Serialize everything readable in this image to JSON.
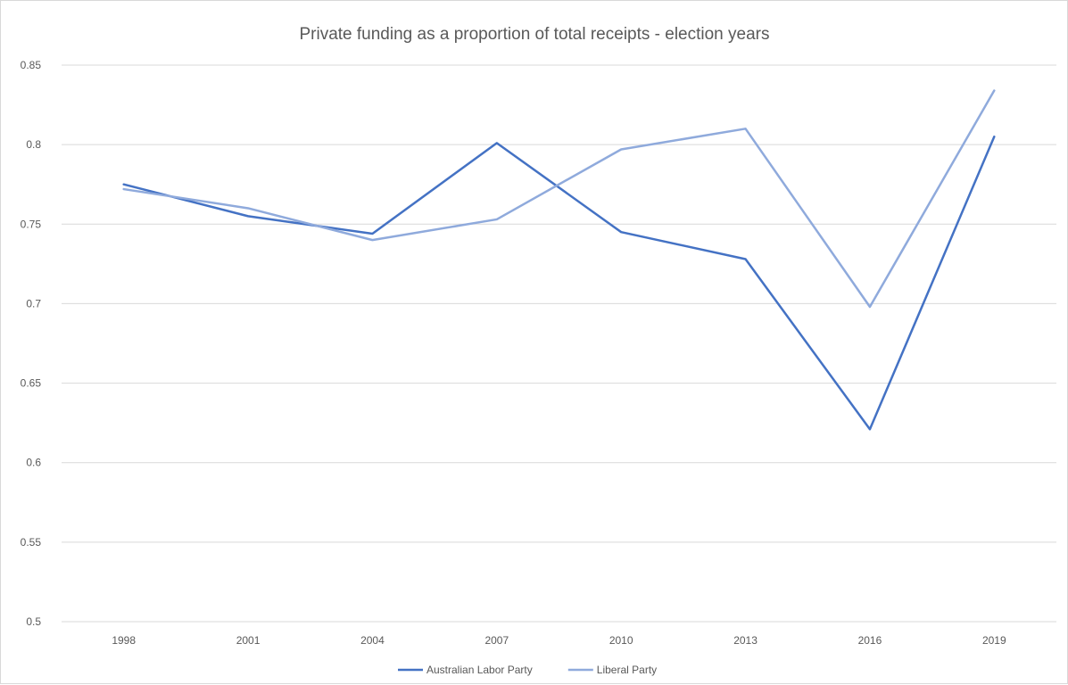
{
  "chart_data": {
    "type": "line",
    "title": "Private funding as a proportion of total receipts - election years",
    "xlabel": "",
    "ylabel": "",
    "categories": [
      "1998",
      "2001",
      "2004",
      "2007",
      "2010",
      "2013",
      "2016",
      "2019"
    ],
    "ylim": [
      0.5,
      0.85
    ],
    "yticks": [
      "0.5",
      "0.55",
      "0.6",
      "0.65",
      "0.7",
      "0.75",
      "0.8",
      "0.85"
    ],
    "grid": true,
    "legend_position": "bottom",
    "series": [
      {
        "name": "Australian Labor Party",
        "color": "#4472c4",
        "values": [
          0.775,
          0.755,
          0.744,
          0.801,
          0.745,
          0.728,
          0.621,
          0.805
        ]
      },
      {
        "name": "Liberal Party",
        "color": "#8faadc",
        "values": [
          0.772,
          0.76,
          0.74,
          0.753,
          0.797,
          0.81,
          0.698,
          0.834
        ]
      }
    ]
  }
}
